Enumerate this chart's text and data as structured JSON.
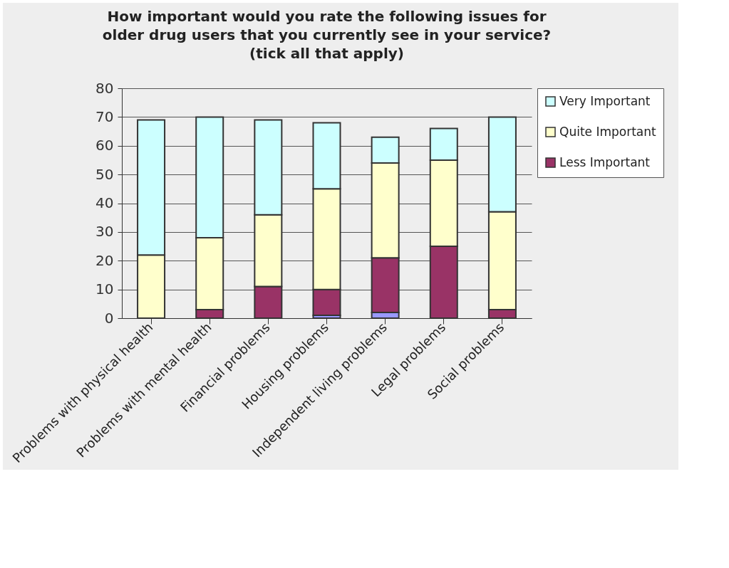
{
  "chart_data": {
    "type": "bar",
    "stacked": true,
    "title": "How important would you rate the following issues for\nolder drug users that you currently see in your service?\n(tick all that apply)",
    "categories": [
      "Problems with physical health",
      "Problems with mental health",
      "Financial problems",
      "Housing problems",
      "Independent living problems",
      "Legal problems",
      "Social problems"
    ],
    "series": [
      {
        "color": "#9999ff",
        "values": [
          0,
          0,
          0,
          1,
          2,
          0,
          0
        ]
      },
      {
        "name": "Less Important",
        "color": "#993366",
        "values": [
          0,
          3,
          11,
          9,
          19,
          25,
          3
        ]
      },
      {
        "name": "Quite Important",
        "color": "#ffffcc",
        "values": [
          22,
          25,
          25,
          35,
          33,
          30,
          34
        ]
      },
      {
        "name": "Very Important",
        "color": "#ccffff",
        "values": [
          47,
          42,
          33,
          23,
          9,
          11,
          33
        ]
      }
    ],
    "ylim": [
      0,
      80
    ],
    "yticks": [
      0,
      10,
      20,
      30,
      40,
      50,
      60,
      70,
      80
    ],
    "grid": "y",
    "legend": "right"
  }
}
